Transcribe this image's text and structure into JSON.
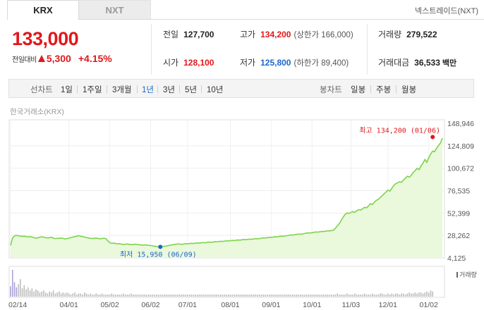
{
  "tabs": [
    {
      "label": "KRX",
      "active": true
    },
    {
      "label": "NXT",
      "active": false
    }
  ],
  "market_link": "넥스트레이드(NXT)",
  "price": {
    "current": "133,000",
    "change_label": "전일대비",
    "change_value": "5,300",
    "change_percent": "+4.15%",
    "direction": "up"
  },
  "stats": {
    "prev_close": {
      "label": "전일",
      "value": "127,700"
    },
    "open": {
      "label": "시가",
      "value": "128,100"
    },
    "high": {
      "label": "고가",
      "value": "134,200",
      "sub": "(상한가 166,000)"
    },
    "low": {
      "label": "저가",
      "value": "125,800",
      "sub": "(하한가 89,400)"
    },
    "volume": {
      "label": "거래량",
      "value": "279,522"
    },
    "trade_value": {
      "label": "거래대금",
      "value": "36,533",
      "unit": "백만"
    }
  },
  "period_bar": {
    "line_label": "선차트",
    "periods": [
      "1일",
      "1주일",
      "3개월",
      "1년",
      "3년",
      "5년",
      "10년"
    ],
    "active_period": "1년",
    "candle_label": "봉차트",
    "candles": [
      "일봉",
      "주봉",
      "월봉"
    ]
  },
  "exchange_label": "한국거래소(KRX)",
  "colors": {
    "up": "#e0181b",
    "down": "#1b67c9",
    "line": "#7dd34a",
    "area": "#eaf8dc"
  },
  "chart_data": {
    "type": "area",
    "title": "",
    "y_axis_ticks": [
      "148,946",
      "124,809",
      "100,672",
      "76,535",
      "52,399",
      "28,262",
      "4,125"
    ],
    "y_axis_values": [
      148946,
      124809,
      100672,
      76535,
      52399,
      28262,
      4125
    ],
    "ylim": [
      4125,
      148946
    ],
    "x_axis_ticks": [
      "02/14",
      "04/01",
      "05/02",
      "06/02",
      "07/01",
      "08/01",
      "09/01",
      "10/01",
      "11/03",
      "12/01",
      "01/02"
    ],
    "x_tick_index": [
      0,
      30,
      51,
      72,
      91,
      113,
      134,
      155,
      175,
      194,
      215
    ],
    "max_annotation": {
      "label": "최고 134,200 (01/06)",
      "index": 217,
      "value": 134200
    },
    "min_annotation": {
      "label": "최저 15,950 (06/09)",
      "index": 77,
      "value": 15950
    },
    "volume_legend": "거래량",
    "grid": true,
    "price_values": [
      17500,
      25500,
      27800,
      28300,
      28000,
      27600,
      27200,
      27500,
      27000,
      26700,
      27000,
      26600,
      25900,
      25300,
      25800,
      26300,
      26800,
      26400,
      25900,
      25600,
      25800,
      26300,
      25500,
      24800,
      25200,
      25000,
      25600,
      25100,
      24500,
      24900,
      25300,
      25900,
      26500,
      27000,
      27500,
      28000,
      27500,
      27000,
      26500,
      26000,
      25600,
      25300,
      24900,
      25200,
      25500,
      25000,
      24600,
      24900,
      25300,
      24800,
      22500,
      20500,
      19800,
      20000,
      19600,
      19200,
      19400,
      18900,
      18500,
      18800,
      19100,
      18700,
      18300,
      18600,
      18900,
      18600,
      18300,
      18000,
      17800,
      18100,
      17900,
      17600,
      17400,
      17000,
      16700,
      16400,
      16100,
      15950,
      16300,
      16600,
      16900,
      17300,
      17700,
      18100,
      18500,
      18800,
      19200,
      19000,
      18700,
      19000,
      19400,
      19100,
      19500,
      19800,
      19600,
      19900,
      20200,
      20000,
      20300,
      20600,
      20400,
      20800,
      21100,
      20800,
      21200,
      21500,
      21300,
      21700,
      22000,
      21800,
      22200,
      22500,
      22300,
      22600,
      23000,
      22700,
      23100,
      23400,
      23200,
      23600,
      23900,
      23700,
      24000,
      24300,
      24100,
      24500,
      24800,
      24600,
      24900,
      25300,
      25700,
      25500,
      25900,
      26300,
      26100,
      26500,
      26900,
      26700,
      27100,
      27500,
      27300,
      27700,
      28000,
      28400,
      28800,
      28600,
      29000,
      29400,
      29800,
      29500,
      29900,
      30300,
      30700,
      31100,
      30800,
      31200,
      31600,
      32000,
      31800,
      32200,
      32600,
      32400,
      32900,
      33300,
      33100,
      33600,
      34000,
      36000,
      38500,
      41000,
      44500,
      48000,
      51000,
      52500,
      52000,
      53000,
      54000,
      53000,
      55000,
      56000,
      55500,
      57000,
      58500,
      58000,
      60000,
      62500,
      61500,
      64000,
      66000,
      67000,
      69000,
      71000,
      73000,
      75000,
      77000,
      76000,
      79000,
      82000,
      84000,
      85000,
      86000,
      85500,
      88000,
      90000,
      92000,
      91000,
      93000,
      96000,
      98000,
      100500,
      99000,
      103000,
      106000,
      110000,
      107000,
      112000,
      116000,
      119000,
      118500,
      122000,
      125000,
      127700,
      133000
    ],
    "volume_values": [
      10,
      26,
      14,
      9,
      12,
      17,
      8,
      11,
      7,
      9,
      6,
      8,
      5,
      7,
      6,
      4,
      5,
      6,
      4,
      3,
      5,
      4,
      6,
      3,
      4,
      5,
      3,
      4,
      3,
      4,
      3,
      2,
      3,
      4,
      2,
      3,
      3,
      2,
      4,
      3,
      2,
      3,
      2,
      2,
      3,
      2,
      2,
      3,
      2,
      2,
      2,
      2,
      3,
      2,
      2,
      2,
      2,
      2,
      3,
      2,
      2,
      2,
      3,
      2,
      2,
      2,
      2,
      2,
      2,
      2,
      2,
      2,
      2,
      2,
      2,
      2,
      2,
      2,
      2,
      2,
      2,
      2,
      2,
      2,
      2,
      2,
      2,
      2,
      2,
      2,
      2,
      2,
      2,
      2,
      2,
      2,
      2,
      2,
      2,
      2,
      2,
      2,
      2,
      2,
      2,
      2,
      2,
      2,
      2,
      2,
      2,
      2,
      2,
      2,
      2,
      2,
      2,
      2,
      2,
      2,
      2,
      2,
      2,
      2,
      2,
      2,
      2,
      2,
      2,
      2,
      2,
      2,
      2,
      2,
      2,
      2,
      2,
      2,
      2,
      2,
      2,
      2,
      2,
      2,
      2,
      2,
      2,
      2,
      2,
      2,
      2,
      2,
      2,
      2,
      2,
      2,
      2,
      2,
      2,
      2,
      2,
      2,
      2,
      2,
      2,
      2,
      2,
      2,
      3,
      2,
      2,
      2,
      2,
      3,
      2,
      2,
      2,
      3,
      2,
      2,
      2,
      2,
      3,
      2,
      2,
      2,
      3,
      2,
      2,
      2,
      3,
      3,
      2,
      2,
      3,
      2,
      3,
      2,
      3,
      3,
      2,
      3,
      3,
      2,
      3,
      4,
      3,
      3,
      4,
      3,
      4,
      4,
      3,
      4,
      5,
      4,
      6,
      5
    ]
  }
}
